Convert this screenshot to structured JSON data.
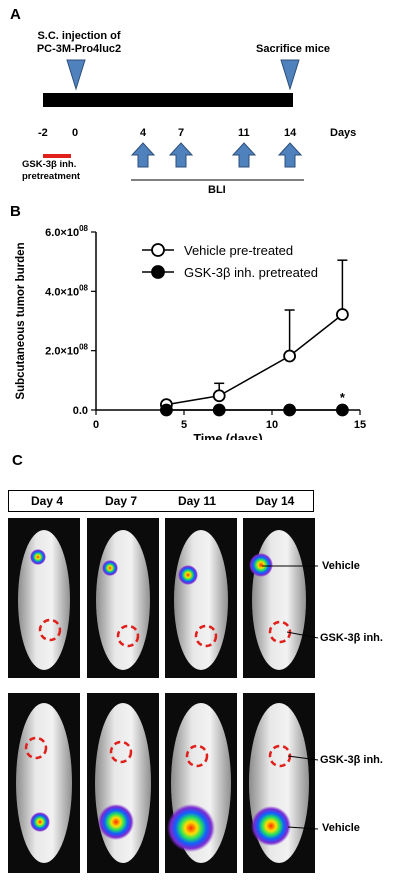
{
  "panel_a": {
    "letter": "A",
    "injection_label": [
      "S.C. injection of",
      "PC-3M-Pro4luc2"
    ],
    "sacrifice_label": "Sacrifice mice",
    "ticks": [
      "-2",
      "0",
      "4",
      "7",
      "11",
      "14"
    ],
    "days_label": "Days",
    "pretreatment_label": [
      "GSK-3β inh.",
      "pretreatment"
    ],
    "bli_label": "BLI",
    "colors": {
      "arrow": "#4f81bd",
      "pretreatment_bar": "#e0201b"
    }
  },
  "panel_b": {
    "letter": "B",
    "chart_data": {
      "type": "line",
      "xlabel": "Time  (days)",
      "ylabel": "Subcutaneous tumor burden",
      "xlim": [
        0,
        15
      ],
      "ylim": [
        0,
        600000000
      ],
      "xticks": [
        "0",
        "5",
        "10",
        "15"
      ],
      "yticks": [
        "0.0",
        "2.0×10",
        "4.0×10",
        "6.0×10"
      ],
      "ytick_exponent": "08",
      "series": [
        {
          "name": "Vehicle pre-treated",
          "marker": "open-circle",
          "x": [
            4,
            7,
            11,
            14
          ],
          "y": [
            18000000,
            48000000,
            182000000,
            322000000
          ],
          "error": [
            0,
            42000000,
            155000000,
            183000000
          ]
        },
        {
          "name": "GSK-3β inh. pretreated",
          "marker": "filled-circle",
          "x": [
            4,
            7,
            11,
            14
          ],
          "y": [
            0,
            0,
            0,
            0
          ],
          "error": [
            0,
            0,
            0,
            0
          ]
        }
      ],
      "annotation": "*",
      "legend_position": "top-center"
    }
  },
  "panel_c": {
    "letter": "C",
    "days": [
      "Day 4",
      "Day 7",
      "Day 11",
      "Day 14"
    ],
    "label_vehicle": "Vehicle",
    "label_gsk": "GSK-3β inh."
  }
}
